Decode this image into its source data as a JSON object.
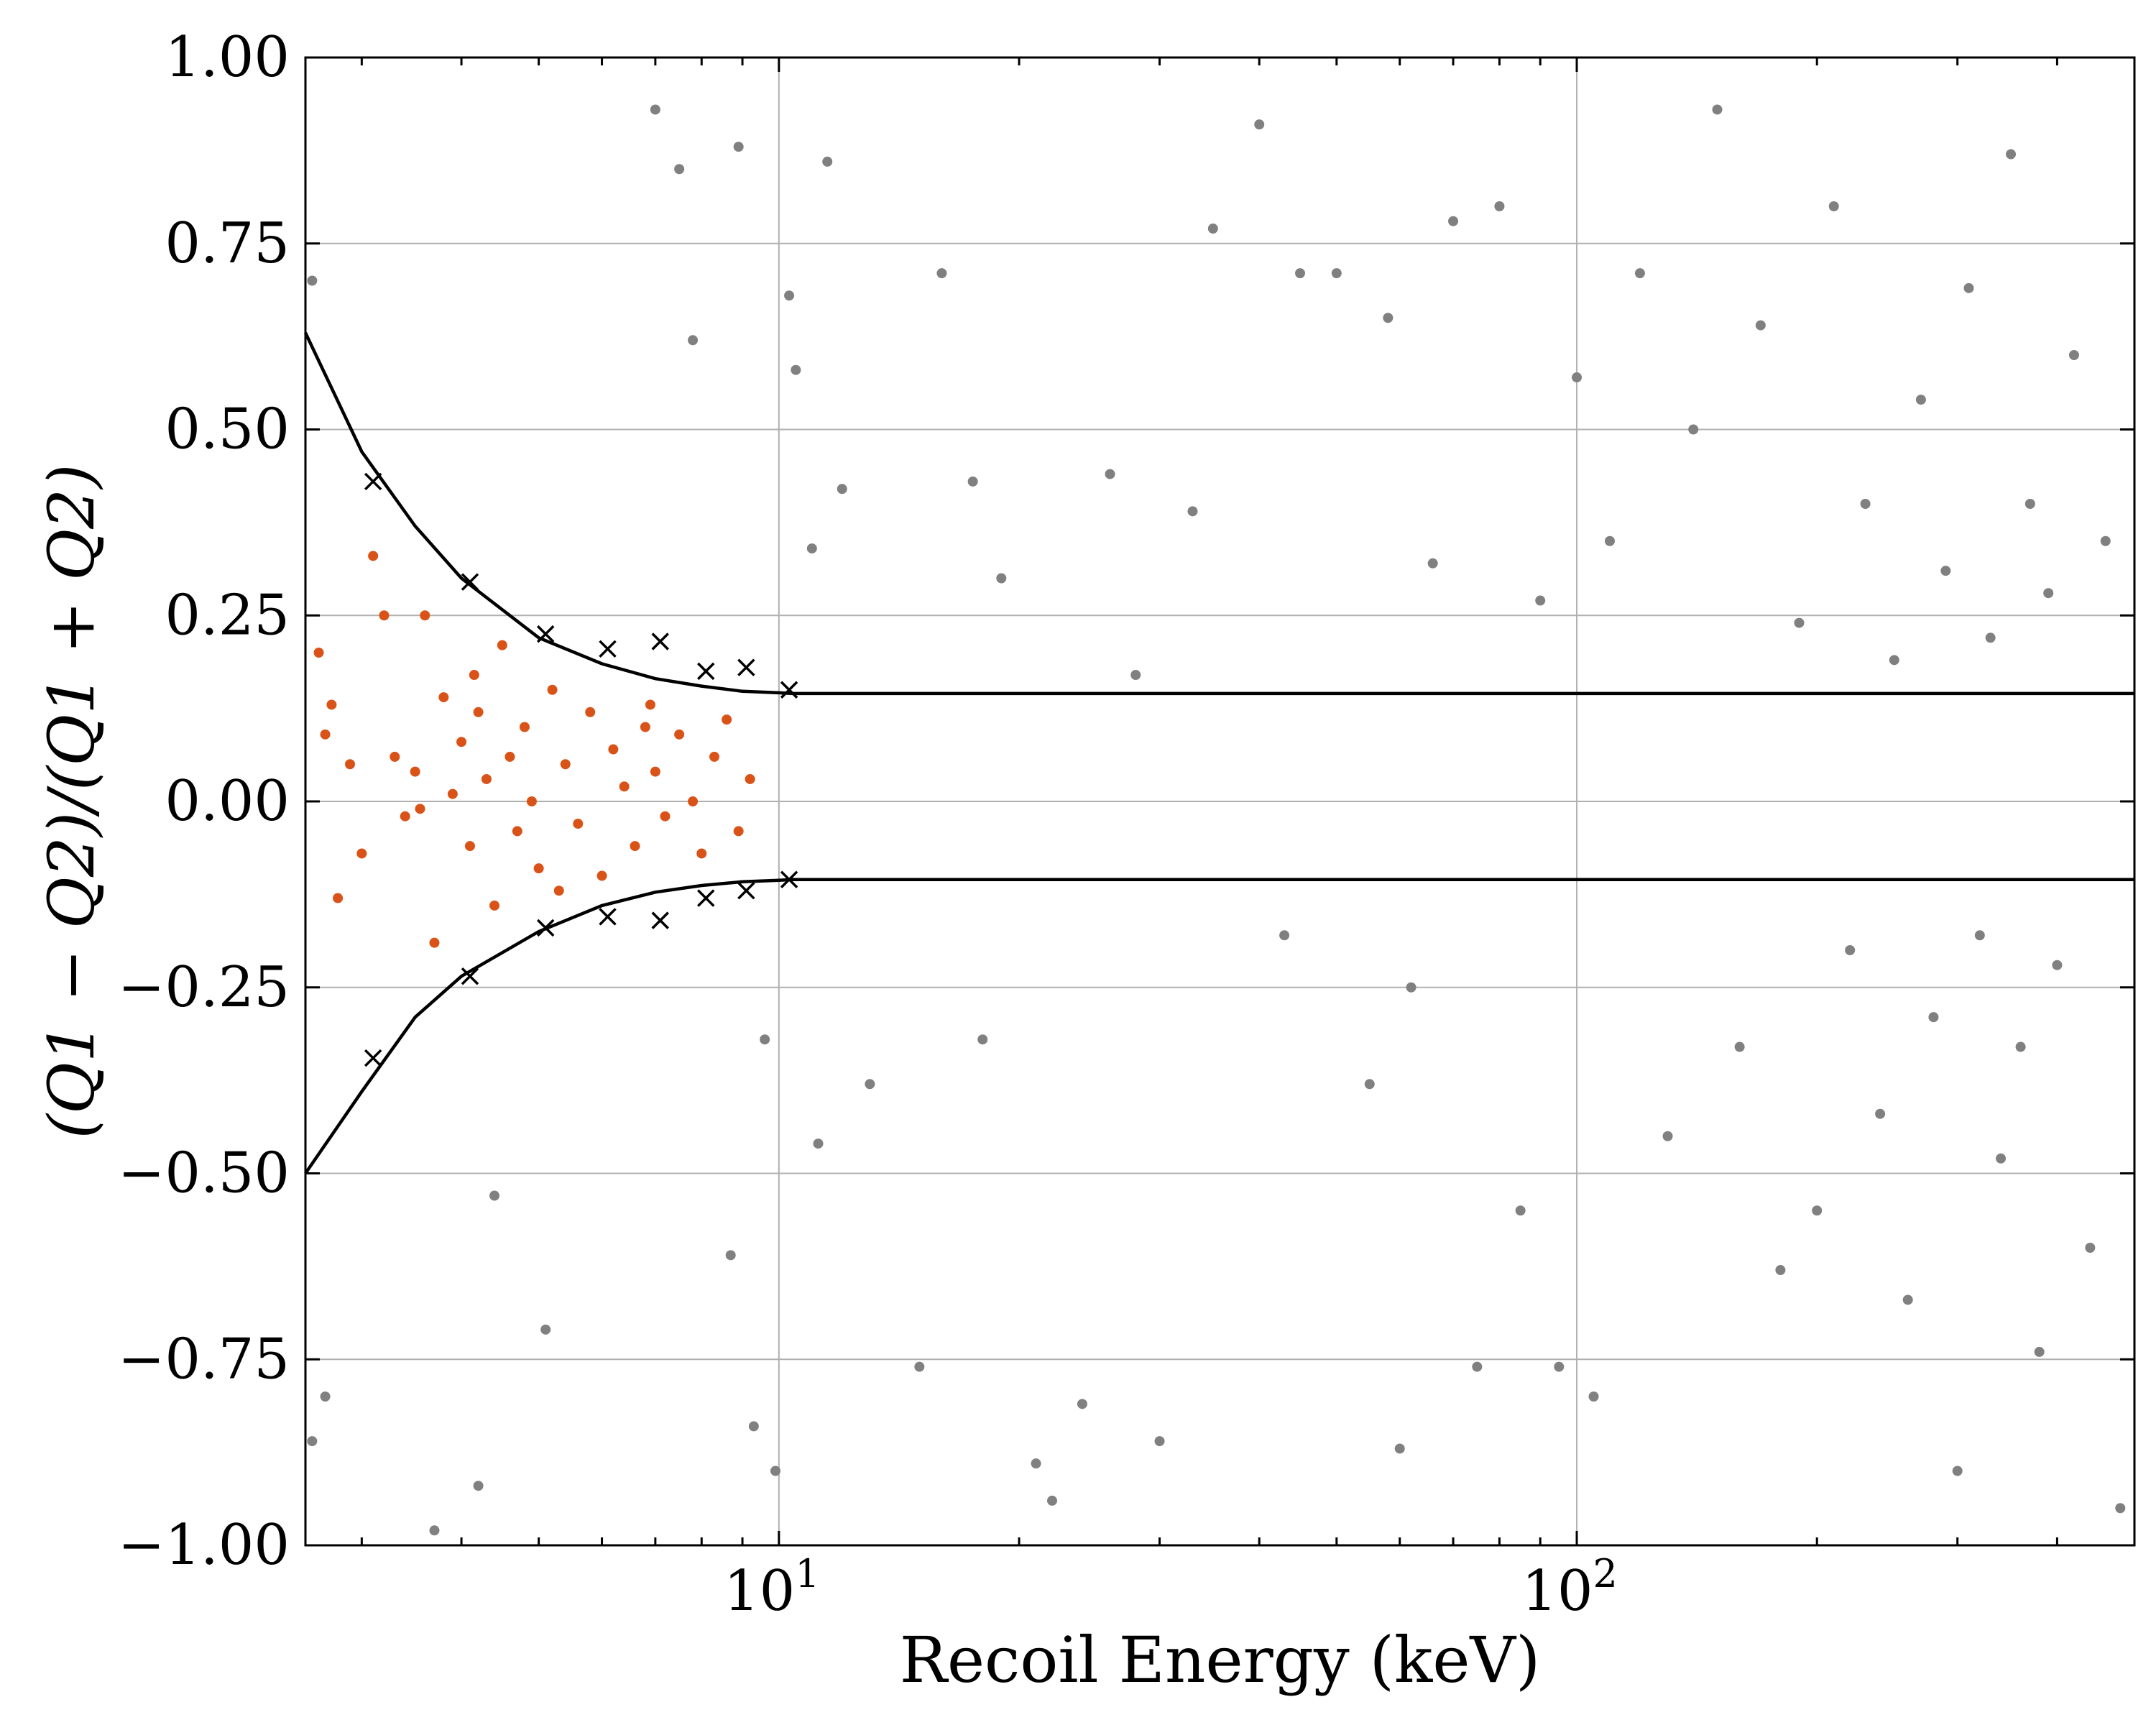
{
  "chart_data": {
    "type": "scatter",
    "title": "",
    "xlabel": "Recoil Energy (keV)",
    "ylabel": "(Q1 − Q2)/(Q1 + Q2)",
    "x_scale": "log",
    "xlim": [
      2.55,
      500
    ],
    "ylim": [
      -1.0,
      1.0
    ],
    "grid": true,
    "legend": "none",
    "x_ticks": [
      {
        "value": 10,
        "base": "10",
        "exp": "1"
      },
      {
        "value": 100,
        "base": "10",
        "exp": "2"
      }
    ],
    "y_ticks": [
      {
        "value": 1.0,
        "label": "1.00"
      },
      {
        "value": 0.75,
        "label": "0.75"
      },
      {
        "value": 0.5,
        "label": "0.50"
      },
      {
        "value": 0.25,
        "label": "0.25"
      },
      {
        "value": 0.0,
        "label": "0.00"
      },
      {
        "value": -0.25,
        "label": "−0.25"
      },
      {
        "value": -0.5,
        "label": "−0.50"
      },
      {
        "value": -0.75,
        "label": "−0.75"
      },
      {
        "value": -1.0,
        "label": "−1.00"
      }
    ],
    "colors": {
      "accepted": "#d95319",
      "rejected": "#808080",
      "boundary": "#000000",
      "grid": "#b0b0b0"
    },
    "boundary_upper": {
      "x": [
        2.55,
        3.0,
        3.5,
        4.0,
        5.0,
        6.0,
        7.0,
        8.0,
        9.0,
        10.0,
        10.4,
        500
      ],
      "y": [
        0.63,
        0.47,
        0.37,
        0.3,
        0.22,
        0.185,
        0.165,
        0.155,
        0.148,
        0.146,
        0.145,
        0.145
      ]
    },
    "boundary_lower": {
      "x": [
        2.55,
        3.0,
        3.5,
        4.0,
        5.0,
        6.0,
        7.0,
        8.0,
        9.0,
        10.0,
        10.4,
        500
      ],
      "y": [
        -0.5,
        -0.39,
        -0.29,
        -0.235,
        -0.175,
        -0.14,
        -0.122,
        -0.113,
        -0.108,
        -0.106,
        -0.105,
        -0.105
      ]
    },
    "markers": {
      "x": [
        3.1,
        4.1,
        5.1,
        6.1,
        7.1,
        8.1,
        9.1,
        10.3
      ],
      "y_upper": [
        0.43,
        0.295,
        0.225,
        0.205,
        0.215,
        0.175,
        0.18,
        0.15
      ],
      "y_lower": [
        -0.345,
        -0.235,
        -0.17,
        -0.155,
        -0.16,
        -0.13,
        -0.12,
        -0.105
      ]
    },
    "series": [
      {
        "distribution": "accepted events",
        "color": "#d95319",
        "points": [
          [
            2.65,
            0.2
          ],
          [
            2.7,
            0.09
          ],
          [
            2.8,
            -0.13
          ],
          [
            2.9,
            0.05
          ],
          [
            3.0,
            -0.07
          ],
          [
            3.1,
            0.33
          ],
          [
            3.2,
            0.25
          ],
          [
            3.3,
            0.06
          ],
          [
            3.4,
            -0.02
          ],
          [
            3.5,
            0.04
          ],
          [
            3.6,
            0.25
          ],
          [
            3.7,
            -0.19
          ],
          [
            3.8,
            0.14
          ],
          [
            3.9,
            0.01
          ],
          [
            4.0,
            0.08
          ],
          [
            4.1,
            -0.06
          ],
          [
            4.2,
            0.12
          ],
          [
            4.3,
            0.03
          ],
          [
            4.4,
            -0.14
          ],
          [
            4.5,
            0.21
          ],
          [
            4.6,
            0.06
          ],
          [
            4.7,
            -0.04
          ],
          [
            4.8,
            0.1
          ],
          [
            4.9,
            0.0
          ],
          [
            5.0,
            -0.09
          ],
          [
            5.2,
            0.15
          ],
          [
            5.4,
            0.05
          ],
          [
            5.6,
            -0.03
          ],
          [
            5.8,
            0.12
          ],
          [
            6.0,
            -0.1
          ],
          [
            6.2,
            0.07
          ],
          [
            6.4,
            0.02
          ],
          [
            6.6,
            -0.06
          ],
          [
            6.8,
            0.1
          ],
          [
            7.0,
            0.04
          ],
          [
            7.2,
            -0.02
          ],
          [
            7.5,
            0.09
          ],
          [
            7.8,
            0.0
          ],
          [
            8.0,
            -0.07
          ],
          [
            8.3,
            0.06
          ],
          [
            8.6,
            0.11
          ],
          [
            8.9,
            -0.04
          ],
          [
            9.2,
            0.03
          ],
          [
            2.75,
            0.13
          ],
          [
            3.55,
            -0.01
          ],
          [
            4.15,
            0.17
          ],
          [
            5.3,
            -0.12
          ],
          [
            6.9,
            0.13
          ]
        ]
      },
      {
        "distribution": "rejected events",
        "color": "#808080",
        "points": [
          [
            2.6,
            0.7
          ],
          [
            2.6,
            -0.86
          ],
          [
            2.7,
            -0.8
          ],
          [
            3.7,
            -0.98
          ],
          [
            4.2,
            -0.92
          ],
          [
            4.4,
            -0.53
          ],
          [
            5.1,
            -0.71
          ],
          [
            7.0,
            0.93
          ],
          [
            7.5,
            0.85
          ],
          [
            7.8,
            0.62
          ],
          [
            8.7,
            -0.61
          ],
          [
            8.9,
            0.88
          ],
          [
            9.3,
            -0.84
          ],
          [
            9.6,
            -0.32
          ],
          [
            9.9,
            -0.9
          ],
          [
            10.3,
            0.68
          ],
          [
            10.5,
            0.58
          ],
          [
            11.0,
            0.34
          ],
          [
            11.2,
            -0.46
          ],
          [
            11.5,
            0.86
          ],
          [
            12.0,
            0.42
          ],
          [
            13.0,
            -0.38
          ],
          [
            15.0,
            -0.76
          ],
          [
            16.0,
            0.71
          ],
          [
            17.5,
            0.43
          ],
          [
            18.0,
            -0.32
          ],
          [
            19.0,
            0.3
          ],
          [
            21.0,
            -0.89
          ],
          [
            22.0,
            -0.94
          ],
          [
            24.0,
            -0.81
          ],
          [
            26.0,
            0.44
          ],
          [
            28.0,
            0.17
          ],
          [
            30.0,
            -0.86
          ],
          [
            33.0,
            0.39
          ],
          [
            35.0,
            0.77
          ],
          [
            40.0,
            0.91
          ],
          [
            43.0,
            -0.18
          ],
          [
            45.0,
            0.71
          ],
          [
            50.0,
            0.71
          ],
          [
            55.0,
            -0.38
          ],
          [
            58.0,
            0.65
          ],
          [
            60.0,
            -0.87
          ],
          [
            62.0,
            -0.25
          ],
          [
            66.0,
            0.32
          ],
          [
            70.0,
            0.78
          ],
          [
            75.0,
            -0.76
          ],
          [
            80.0,
            0.8
          ],
          [
            85.0,
            -0.55
          ],
          [
            90.0,
            0.27
          ],
          [
            95.0,
            -0.76
          ],
          [
            100.0,
            0.57
          ],
          [
            105.0,
            -0.8
          ],
          [
            110.0,
            0.35
          ],
          [
            120.0,
            0.71
          ],
          [
            130.0,
            -0.45
          ],
          [
            140.0,
            0.5
          ],
          [
            150.0,
            0.93
          ],
          [
            160.0,
            -0.33
          ],
          [
            170.0,
            0.64
          ],
          [
            180.0,
            -0.63
          ],
          [
            190.0,
            0.24
          ],
          [
            200.0,
            -0.55
          ],
          [
            210.0,
            0.8
          ],
          [
            220.0,
            -0.2
          ],
          [
            230.0,
            0.4
          ],
          [
            240.0,
            -0.42
          ],
          [
            250.0,
            0.19
          ],
          [
            260.0,
            -0.67
          ],
          [
            270.0,
            0.54
          ],
          [
            280.0,
            -0.29
          ],
          [
            290.0,
            0.31
          ],
          [
            300.0,
            -0.9
          ],
          [
            310.0,
            0.69
          ],
          [
            320.0,
            -0.18
          ],
          [
            330.0,
            0.22
          ],
          [
            340.0,
            -0.48
          ],
          [
            350.0,
            0.87
          ],
          [
            360.0,
            -0.33
          ],
          [
            370.0,
            0.4
          ],
          [
            380.0,
            -0.74
          ],
          [
            390.0,
            0.28
          ],
          [
            400.0,
            -0.22
          ],
          [
            420.0,
            0.6
          ],
          [
            440.0,
            -0.6
          ],
          [
            460.0,
            0.35
          ],
          [
            480.0,
            -0.95
          ]
        ]
      }
    ]
  }
}
